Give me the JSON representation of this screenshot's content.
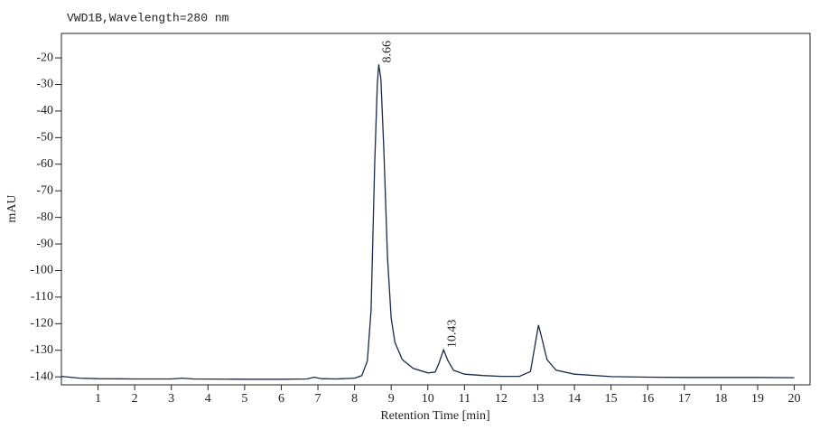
{
  "chart_data": {
    "type": "line",
    "title": "VWD1B,Wavelength=280 nm",
    "x_label": "Retention Time [min]",
    "y_label": "mAU",
    "x": [
      0,
      0.5,
      1,
      2,
      3,
      3.3,
      3.6,
      5,
      6,
      6.7,
      6.9,
      7.1,
      7.5,
      8,
      8.2,
      8.35,
      8.45,
      8.55,
      8.62,
      8.66,
      8.72,
      8.8,
      8.9,
      9.0,
      9.1,
      9.3,
      9.6,
      10.0,
      10.2,
      10.3,
      10.43,
      10.55,
      10.7,
      11,
      11.5,
      12,
      12.5,
      12.8,
      12.9,
      13.02,
      13.12,
      13.25,
      13.5,
      14,
      15,
      16,
      17,
      18,
      19,
      20
    ],
    "series": [
      {
        "color": "#1a2a4a",
        "values": [
          -139.8,
          -140.5,
          -140.7,
          -140.8,
          -140.8,
          -140.5,
          -140.8,
          -140.9,
          -140.9,
          -140.8,
          -140.1,
          -140.7,
          -140.8,
          -140.5,
          -139.5,
          -134,
          -115,
          -60,
          -30,
          -22.5,
          -28,
          -55,
          -95,
          -118,
          -127,
          -133.5,
          -136.8,
          -138.5,
          -138.2,
          -135,
          -129.8,
          -134,
          -137.5,
          -139,
          -139.5,
          -139.8,
          -139.8,
          -138,
          -130,
          -120.5,
          -126,
          -133.5,
          -137.5,
          -139,
          -139.9,
          -140.1,
          -140.2,
          -140.2,
          -140.2,
          -140.3
        ]
      }
    ],
    "annotations": [
      {
        "text": "8.66",
        "x": 8.66,
        "y": -22.5
      },
      {
        "text": "10.43",
        "x": 10.43,
        "y": -129.8
      }
    ],
    "xlim": [
      0,
      20.43
    ],
    "ylim": [
      -143,
      -10.8
    ],
    "xticks": [
      1,
      2,
      3,
      4,
      5,
      6,
      7,
      8,
      9,
      10,
      11,
      12,
      13,
      14,
      15,
      16,
      17,
      18,
      19,
      20
    ],
    "yticks": [
      -20,
      -30,
      -40,
      -50,
      -60,
      -70,
      -80,
      -90,
      -100,
      -110,
      -120,
      -130,
      -140
    ]
  }
}
